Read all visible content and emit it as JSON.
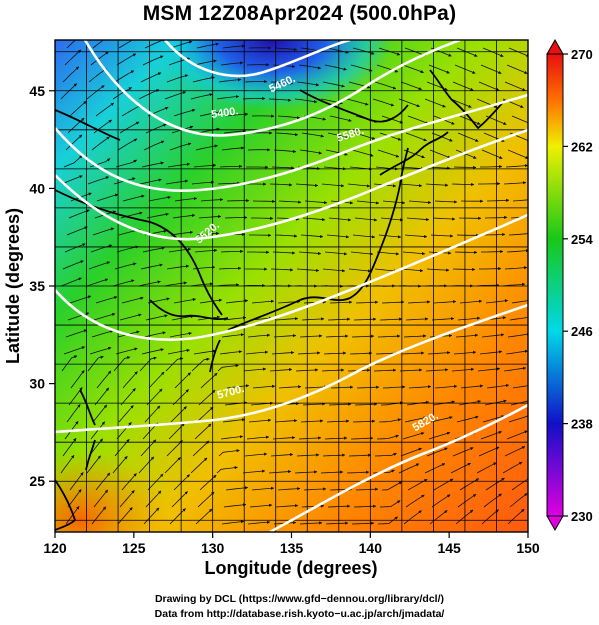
{
  "title": "MSM 12Z08Apr2024 (500.0hPa)",
  "axes": {
    "xlabel": "Longitude (degrees)",
    "ylabel": "Latitude  (degrees)",
    "xlim": [
      120,
      150
    ],
    "ylim": [
      22.4,
      47.6
    ],
    "xticks": [
      "120",
      "125",
      "130",
      "135",
      "140",
      "145",
      "150"
    ],
    "yticks": [
      "25",
      "30",
      "35",
      "40",
      "45"
    ],
    "grid": true
  },
  "colorbar": {
    "min": 230,
    "max": 270,
    "tick_labels": [
      "230",
      "238",
      "246",
      "254",
      "262",
      "270"
    ],
    "colors": [
      "#e000e0",
      "#1010c8",
      "#00d8e8",
      "#18c818",
      "#f0f000",
      "#ff7000",
      "#e81010"
    ]
  },
  "contour_labels": [
    {
      "text": "5400.",
      "lon": 130.8,
      "lat": 43.7,
      "rotate": -8
    },
    {
      "text": "5460.",
      "lon": 134.5,
      "lat": 45.2,
      "rotate": -25
    },
    {
      "text": "5520.",
      "lon": 129.8,
      "lat": 37.6,
      "rotate": -40
    },
    {
      "text": "5580.",
      "lon": 138.8,
      "lat": 42.6,
      "rotate": -18
    },
    {
      "text": "5700.",
      "lon": 131.2,
      "lat": 29.4,
      "rotate": -15
    },
    {
      "text": "5820.",
      "lon": 143.6,
      "lat": 27.9,
      "rotate": -30
    }
  ],
  "footer": {
    "line1": "Drawing by DCL (https://www.gfd−dennou.org/library/dcl/)",
    "line2": "Data from http://database.rish.kyoto−u.ac.jp/arch/jmadata/"
  }
}
